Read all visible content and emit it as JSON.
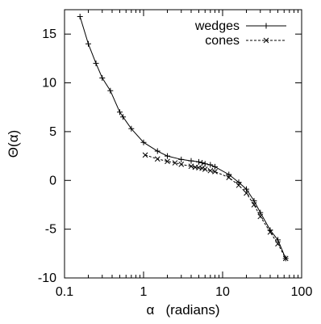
{
  "chart_data": {
    "type": "line",
    "xlabel": "α   (radians)",
    "ylabel": "Θ(α)",
    "xscale": "log",
    "xlim": [
      0.1,
      100
    ],
    "ylim": [
      -10,
      17.5
    ],
    "xticks": [
      {
        "value": 0.1,
        "label": "0.1"
      },
      {
        "value": 1,
        "label": "1"
      },
      {
        "value": 10,
        "label": "10"
      },
      {
        "value": 100,
        "label": "100"
      }
    ],
    "yticks": [
      {
        "value": 15,
        "label": "15"
      },
      {
        "value": 10,
        "label": "10"
      },
      {
        "value": 5,
        "label": "5"
      },
      {
        "value": 0,
        "label": "0"
      },
      {
        "value": -5,
        "label": "-5"
      },
      {
        "value": -10,
        "label": "-10"
      }
    ],
    "grid": false,
    "legend_position": "top-right",
    "series": [
      {
        "name": "wedges",
        "line_style": "solid",
        "marker": "plus",
        "x": [
          0.157,
          0.2,
          0.25,
          0.3,
          0.38,
          0.5,
          0.55,
          0.7,
          1.0,
          1.5,
          2.0,
          3.0,
          4.0,
          5.0,
          5.5,
          6.0,
          7.0,
          8.0,
          12.0,
          16.0,
          20.0,
          25.0,
          30.0,
          40.0,
          50.0,
          62.8
        ],
        "y": [
          16.8,
          14.0,
          12.0,
          10.5,
          9.2,
          7.0,
          6.5,
          5.3,
          3.9,
          3.0,
          2.5,
          2.15,
          2.0,
          1.9,
          1.8,
          1.7,
          1.6,
          1.4,
          0.6,
          -0.2,
          -0.9,
          -2.1,
          -3.3,
          -5.1,
          -6.1,
          -8.0
        ]
      },
      {
        "name": "cones",
        "line_style": "dashed",
        "marker": "cross",
        "x": [
          1.05,
          1.5,
          2.0,
          2.5,
          3.0,
          4.0,
          4.5,
          5.0,
          5.5,
          6.0,
          7.0,
          8.0,
          12.0,
          16.0,
          20.0,
          25.0,
          30.0,
          40.0,
          50.0,
          62.8
        ],
        "y": [
          2.6,
          2.2,
          1.95,
          1.8,
          1.65,
          1.45,
          1.35,
          1.3,
          1.25,
          1.15,
          1.0,
          0.9,
          0.3,
          -0.5,
          -1.3,
          -2.5,
          -3.7,
          -5.3,
          -6.5,
          -8.0
        ]
      }
    ]
  }
}
